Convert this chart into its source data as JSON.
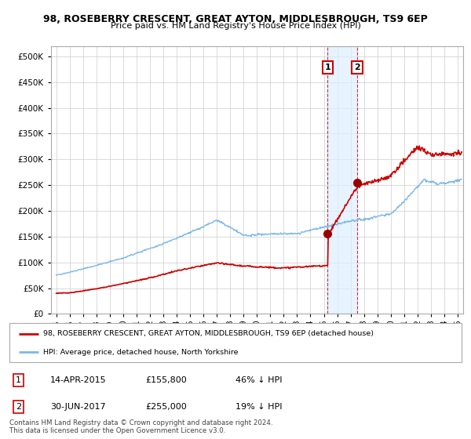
{
  "title": "98, ROSEBERRY CRESCENT, GREAT AYTON, MIDDLESBROUGH, TS9 6EP",
  "subtitle": "Price paid vs. HM Land Registry's House Price Index (HPI)",
  "legend_line1": "98, ROSEBERRY CRESCENT, GREAT AYTON, MIDDLESBROUGH, TS9 6EP (detached house)",
  "legend_line2": "HPI: Average price, detached house, North Yorkshire",
  "footnote1": "Contains HM Land Registry data © Crown copyright and database right 2024.",
  "footnote2": "This data is licensed under the Open Government Licence v3.0.",
  "transaction1": {
    "label": "1",
    "date": "14-APR-2015",
    "price": 155800,
    "note": "46% ↓ HPI",
    "x": 2015.29
  },
  "transaction2": {
    "label": "2",
    "date": "30-JUN-2017",
    "price": 255000,
    "note": "19% ↓ HPI",
    "x": 2017.5
  },
  "hpi_color": "#7cb8e8",
  "price_color": "#cc0000",
  "marker_color": "#990000",
  "vline_color": "#cc0000",
  "shade_color": "#ddeeff",
  "ylim": [
    0,
    520000
  ],
  "yticks": [
    0,
    50000,
    100000,
    150000,
    200000,
    250000,
    300000,
    350000,
    400000,
    450000,
    500000
  ],
  "xlim_start": 1994.6,
  "xlim_end": 2025.4,
  "xticks": [
    1995,
    1996,
    1997,
    1998,
    1999,
    2000,
    2001,
    2002,
    2003,
    2004,
    2005,
    2006,
    2007,
    2008,
    2009,
    2010,
    2011,
    2012,
    2013,
    2014,
    2015,
    2016,
    2017,
    2018,
    2019,
    2020,
    2021,
    2022,
    2023,
    2024,
    2025
  ]
}
